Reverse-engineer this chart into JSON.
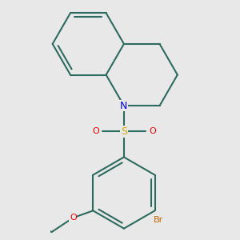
{
  "background_color": "#e8e8e8",
  "bond_color": "#2d6b5e",
  "bond_width": 1.5,
  "atom_colors": {
    "N": "#0000ee",
    "S": "#ccaa00",
    "O": "#ee0000",
    "Br": "#cc6600"
  },
  "font_size_large": 9,
  "font_size_small": 8,
  "dbo": 0.055
}
